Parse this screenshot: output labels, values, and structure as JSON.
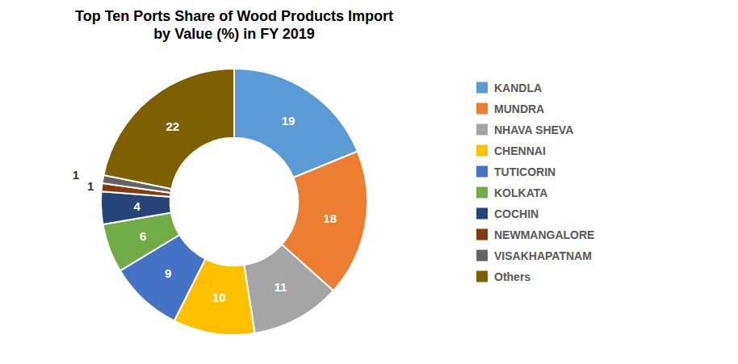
{
  "chart_data": {
    "type": "pie",
    "title": "Top Ten Ports Share of Wood Products Import\nby Value (%) in FY 2019",
    "categories": [
      "KANDLA",
      "MUNDRA",
      "NHAVA SHEVA",
      "CHENNAI",
      "TUTICORIN",
      "KOLKATA",
      "COCHIN",
      "NEWMANGALORE",
      "VISAKHAPATNAM",
      "Others"
    ],
    "values": [
      19,
      18,
      11,
      10,
      9,
      6,
      4,
      1,
      1,
      22
    ],
    "colors": [
      "#5B9BD5",
      "#ED7D31",
      "#A5A5A5",
      "#FFC000",
      "#4472C4",
      "#70AD47",
      "#264478",
      "#843C0C",
      "#636363",
      "#7F6000"
    ],
    "data_labels": true,
    "legend": "right"
  }
}
